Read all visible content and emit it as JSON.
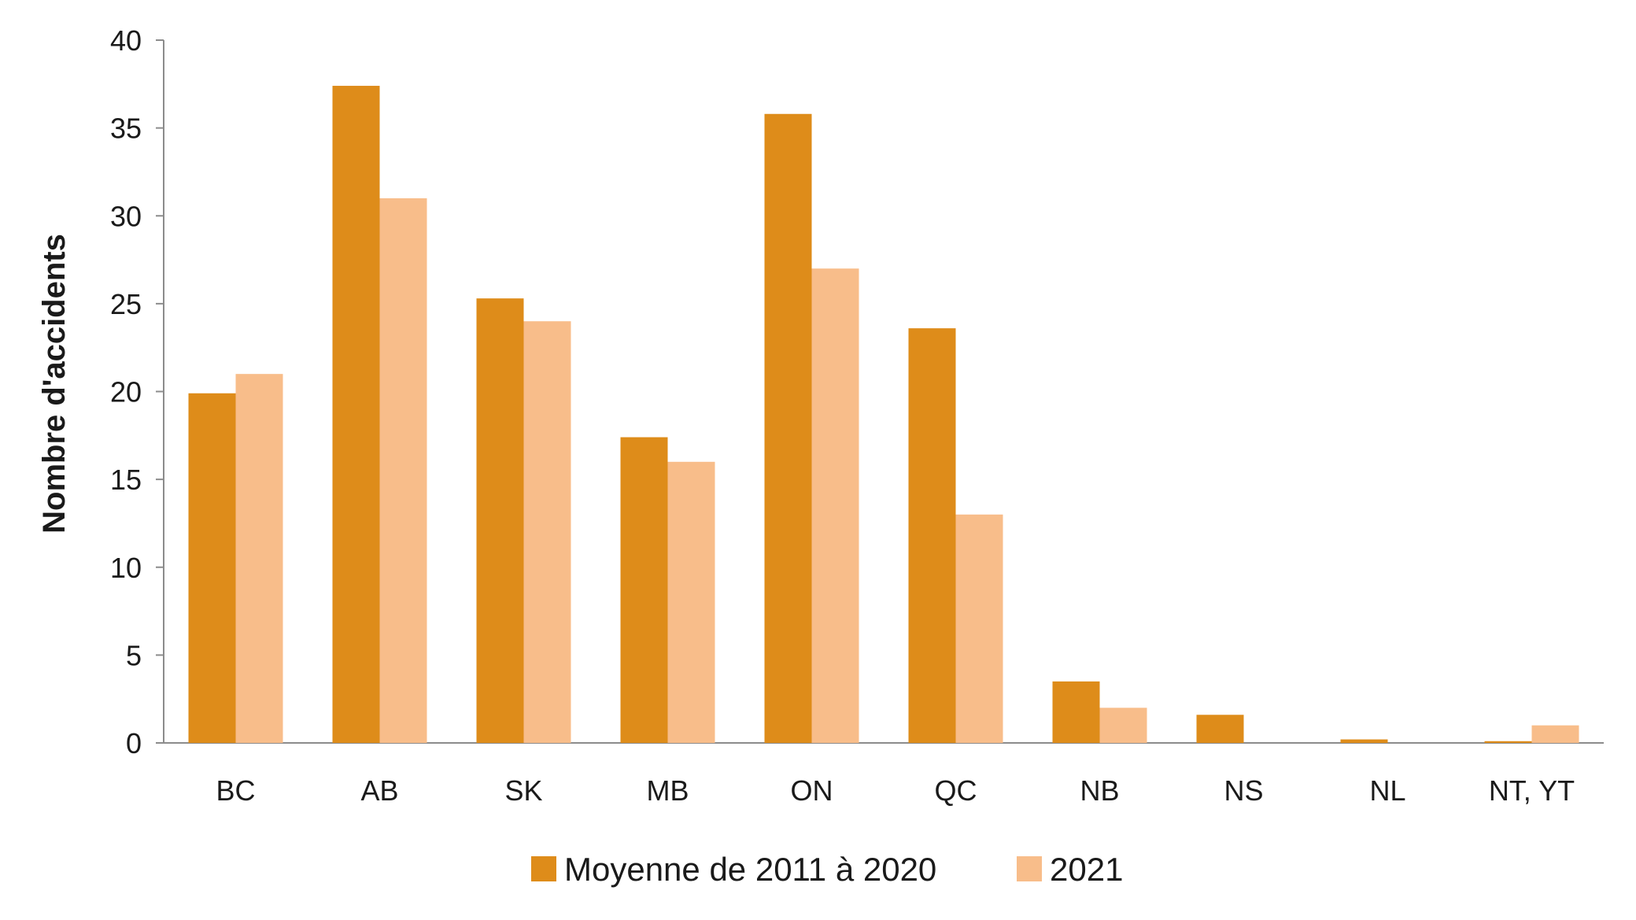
{
  "chart_data": {
    "type": "bar",
    "title": "",
    "xlabel": "",
    "ylabel": "Nombre d'accidents",
    "ylim": [
      0,
      40
    ],
    "yticks": [
      0,
      5,
      10,
      15,
      20,
      25,
      30,
      35,
      40
    ],
    "grid": false,
    "legend_position": "bottom",
    "categories": [
      "BC",
      "AB",
      "SK",
      "MB",
      "ON",
      "QC",
      "NB",
      "NS",
      "NL",
      "NT, YT"
    ],
    "series": [
      {
        "name": "Moyenne de 2011 à 2020",
        "color": "#DE8C1A",
        "values": [
          19.9,
          37.4,
          25.3,
          17.4,
          35.8,
          23.6,
          3.5,
          1.6,
          0.2,
          0.1
        ]
      },
      {
        "name": "2021",
        "color": "#F8BD8A",
        "values": [
          21,
          31,
          24,
          16,
          27,
          13,
          2,
          0,
          0,
          1
        ]
      }
    ]
  }
}
